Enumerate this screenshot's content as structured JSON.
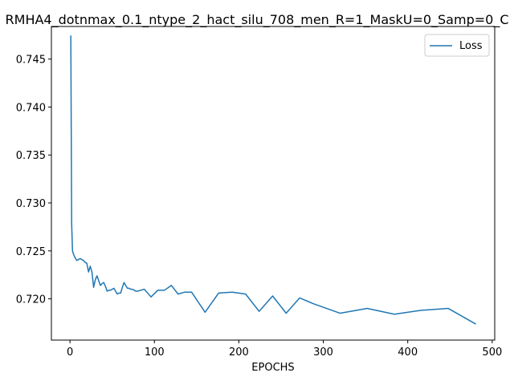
{
  "chart_data": {
    "type": "line",
    "title": "RMHA4_dotnmax_0.1_ntype_2_hact_silu_708_men_R=1_MaskU=0_Samp=0_C",
    "xlabel": "EPOCHS",
    "ylabel": "",
    "xlim": [
      -22,
      503
    ],
    "ylim": [
      0.7157,
      0.7484
    ],
    "x_ticks": [
      0,
      100,
      200,
      300,
      400,
      500
    ],
    "y_ticks": [
      0.72,
      0.725,
      0.73,
      0.735,
      0.74,
      0.745
    ],
    "x_tick_labels": [
      "0",
      "100",
      "200",
      "300",
      "400",
      "500"
    ],
    "y_tick_labels": [
      "0.720",
      "0.725",
      "0.730",
      "0.735",
      "0.740",
      "0.745"
    ],
    "grid": false,
    "legend_position": "top-right",
    "series": [
      {
        "name": "Loss",
        "color": "#1f77b4",
        "x": [
          1,
          2,
          3,
          4,
          6,
          8,
          10,
          12,
          14,
          16,
          18,
          20,
          22,
          24,
          26,
          28,
          30,
          32,
          34,
          36,
          38,
          40,
          42,
          44,
          46,
          48,
          50,
          52,
          54,
          56,
          58,
          60,
          62,
          64,
          66,
          68,
          70,
          72,
          74,
          76,
          78,
          80,
          84,
          88,
          96,
          104,
          112,
          120,
          128,
          136,
          144,
          160,
          176,
          192,
          208,
          224,
          240,
          256,
          272,
          288,
          304,
          320,
          352,
          384,
          416,
          448,
          480
        ],
        "y": [
          0.7474,
          0.7278,
          0.725,
          0.7247,
          0.7243,
          0.724,
          0.7241,
          0.7242,
          0.7241,
          0.724,
          0.7238,
          0.7237,
          0.7228,
          0.7234,
          0.7228,
          0.7212,
          0.722,
          0.7224,
          0.7219,
          0.7214,
          0.7216,
          0.7217,
          0.7213,
          0.7208,
          0.7209,
          0.7209,
          0.721,
          0.7211,
          0.7208,
          0.7205,
          0.7206,
          0.7206,
          0.7212,
          0.7217,
          0.7214,
          0.7211,
          0.7211,
          0.721,
          0.721,
          0.7209,
          0.7208,
          0.7208,
          0.7209,
          0.721,
          0.7202,
          0.7209,
          0.7209,
          0.7214,
          0.7205,
          0.7207,
          0.7207,
          0.7186,
          0.7206,
          0.7207,
          0.7205,
          0.7187,
          0.7203,
          0.7185,
          0.7201,
          0.7195,
          0.719,
          0.7185,
          0.719,
          0.7184,
          0.7188,
          0.719,
          0.7174
        ]
      }
    ]
  }
}
